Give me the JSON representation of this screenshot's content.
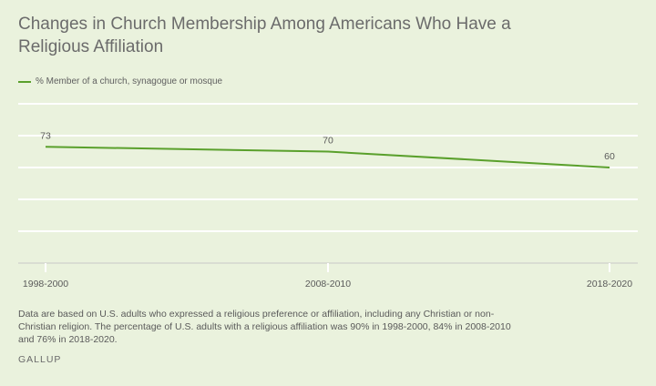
{
  "title": "Changes in Church Membership Among Americans Who Have a Religious Affiliation",
  "note": "Data are based on U.S. adults who expressed a religious preference or affiliation, including any Christian or non-Christian religion. The percentage of U.S. adults with a religious affiliation was 90% in 1998-2000, 84% in 2008-2010 and 76% in 2018-2020.",
  "brand": "GALLUP",
  "chart_data": {
    "type": "line",
    "title": "Changes in Church Membership Among Americans Who Have a Religious Affiliation",
    "xlabel": "",
    "ylabel": "",
    "categories": [
      "1998-2000",
      "2008-2010",
      "2018-2020"
    ],
    "series": [
      {
        "name": "% Member of a church, synagogue or mosque",
        "color": "#5aa02c",
        "values": [
          73,
          70,
          60
        ]
      }
    ],
    "ylim": [
      0,
      100
    ],
    "yticks": [
      0,
      20,
      40,
      60,
      80,
      100
    ],
    "y_tick_labels_shown": false,
    "grid": true,
    "legend": "top-left",
    "data_labels": true
  }
}
